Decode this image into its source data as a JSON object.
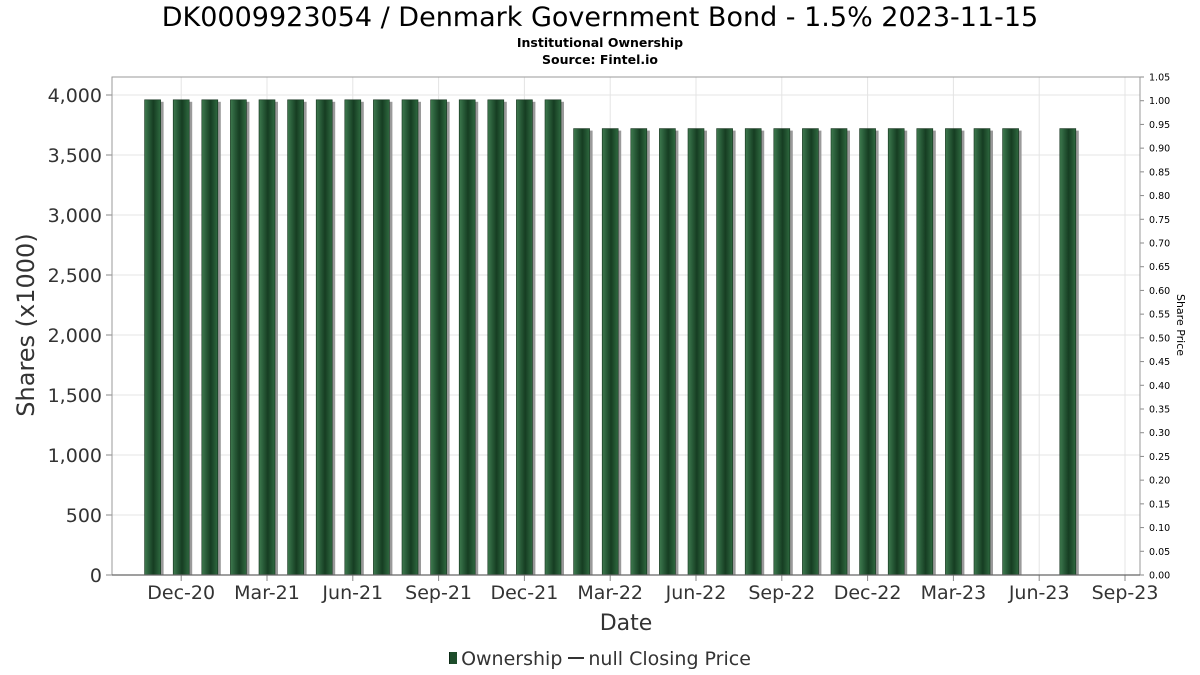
{
  "chart_data": {
    "type": "bar",
    "title": "DK0009923054 / Denmark Government Bond - 1.5% 2023-11-15",
    "subtitle_lines": [
      "Institutional Ownership",
      "Source: Fintel.io"
    ],
    "xlabel": "Date",
    "ylabel": "Shares (x1000)",
    "y2label": "Share Price",
    "ylim": [
      0,
      4150
    ],
    "y2lim": [
      0,
      1.05
    ],
    "yticks": [
      "0",
      "500",
      "1,000",
      "1,500",
      "2,000",
      "2,500",
      "3,000",
      "3,500",
      "4,000"
    ],
    "y2ticks": [
      "0.00",
      "0.05",
      "0.10",
      "0.15",
      "0.20",
      "0.25",
      "0.30",
      "0.35",
      "0.40",
      "0.45",
      "0.50",
      "0.55",
      "0.60",
      "0.65",
      "0.70",
      "0.75",
      "0.80",
      "0.85",
      "0.90",
      "0.95",
      "1.00",
      "1.05"
    ],
    "xticks": [
      "Dec-20",
      "Mar-21",
      "Jun-21",
      "Sep-21",
      "Dec-21",
      "Mar-22",
      "Jun-22",
      "Sep-22",
      "Dec-22",
      "Mar-23",
      "Jun-23",
      "Sep-23"
    ],
    "grid": true,
    "legend_position": "bottom",
    "series": [
      {
        "name": "Ownership",
        "color": "#1e4d2b",
        "values": [
          3960,
          3960,
          3960,
          3960,
          3960,
          3960,
          3960,
          3960,
          3960,
          3960,
          3960,
          3960,
          3960,
          3960,
          3960,
          3720,
          3720,
          3720,
          3720,
          3720,
          3720,
          3720,
          3720,
          3720,
          3720,
          3720,
          3720,
          3720,
          3720,
          3720,
          3720,
          null,
          3720
        ]
      },
      {
        "name": "null Closing Price",
        "color": "#333333",
        "values": []
      }
    ]
  }
}
